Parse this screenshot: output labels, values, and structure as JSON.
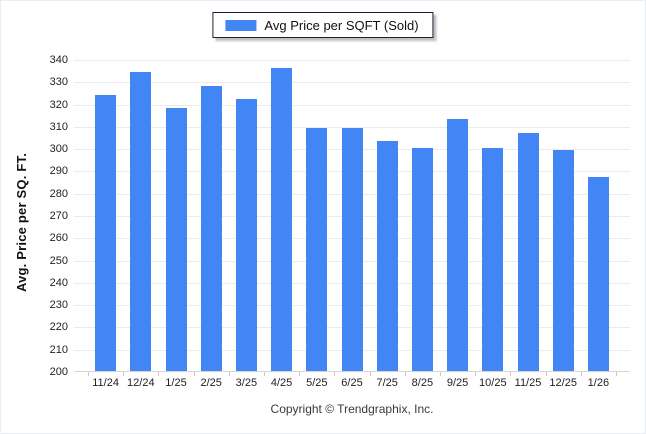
{
  "legend": {
    "label": "Avg Price per SQFT (Sold)"
  },
  "y_axis": {
    "title": "Avg. Price per SQ. FT."
  },
  "footer": {
    "text": "Copyright © Trendgraphix, Inc."
  },
  "colors": {
    "bar": "#4285F4",
    "gridline": "#ECECEC",
    "baseline": "#D6D6D6",
    "tick": "#C9C9C9",
    "tick_text": "#222222",
    "legend_border": "#1D1D35",
    "footer_text": "#3A3A3A",
    "background": "#FFFFFF"
  },
  "chart_data": {
    "type": "bar",
    "title": "",
    "xlabel": "",
    "ylabel": "Avg. Price per SQ. FT.",
    "legend_entries": [
      "Avg Price per SQFT (Sold)"
    ],
    "legend_position": "top-center",
    "grid": "horizontal",
    "ylim": [
      200,
      340
    ],
    "ytick_step": 10,
    "categories": [
      "11/24",
      "12/24",
      "1/25",
      "2/25",
      "3/25",
      "4/25",
      "5/25",
      "6/25",
      "7/25",
      "8/25",
      "9/25",
      "10/25",
      "11/25",
      "12/25",
      "1/26"
    ],
    "series": [
      {
        "name": "Avg Price per SQFT (Sold)",
        "values": [
          324,
          334,
          318,
          328,
          322,
          336,
          309,
          309,
          303,
          300,
          313,
          300,
          307,
          299,
          287
        ]
      }
    ]
  }
}
